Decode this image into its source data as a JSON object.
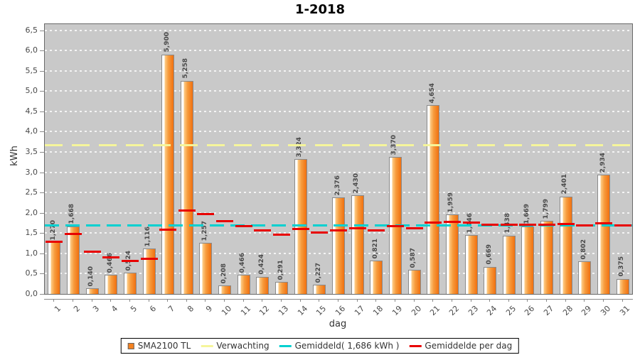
{
  "chart_data": {
    "type": "bar",
    "title": "1-2018",
    "xlabel": "dag",
    "ylabel": "kWh",
    "ylim": [
      0,
      6.65
    ],
    "y_tick_step": 0.5,
    "y_ticks": [
      "0,0",
      "0,5",
      "1,0",
      "1,5",
      "2,0",
      "2,5",
      "3,0",
      "3,5",
      "4,0",
      "4,5",
      "5,0",
      "5,5",
      "6,0",
      "6,5"
    ],
    "categories": [
      "1",
      "2",
      "3",
      "4",
      "5",
      "6",
      "7",
      "8",
      "9",
      "10",
      "11",
      "12",
      "13",
      "14",
      "15",
      "16",
      "17",
      "18",
      "19",
      "20",
      "21",
      "22",
      "23",
      "24",
      "25",
      "26",
      "27",
      "28",
      "29",
      "30",
      "31"
    ],
    "grid": true,
    "plot_bg": "#c9c9c9",
    "grid_color": "rgba(255,255,255,0.8)",
    "legend_position": "bottom",
    "series": [
      {
        "name": "SMA2100 TL",
        "type": "bar",
        "color": "#f58220",
        "gradient": [
          "#ffffff",
          "#fdcb85",
          "#f79b3c",
          "#f07010"
        ],
        "values": [
          1.27,
          1.668,
          0.14,
          0.466,
          0.524,
          1.116,
          5.9,
          5.258,
          1.257,
          0.208,
          0.466,
          0.424,
          0.291,
          3.324,
          0.227,
          2.376,
          2.43,
          0.821,
          3.37,
          0.587,
          4.654,
          1.959,
          1.446,
          0.669,
          1.438,
          1.669,
          1.799,
          2.401,
          0.802,
          2.934,
          0.375
        ],
        "labels": [
          "1,270",
          "1,668",
          "0,140",
          "0,466",
          "0,524",
          "1,116",
          "5,900",
          "5,258",
          "1,257",
          "0,208",
          "0,466",
          "0,424",
          "0,291",
          "3,324",
          "0,227",
          "2,376",
          "2,430",
          "0,821",
          "3,370",
          "0,587",
          "4,654",
          "1,959",
          "1,446",
          "0,669",
          "1,438",
          "1,669",
          "1,799",
          "2,401",
          "0,802",
          "2,934",
          "0,375"
        ]
      },
      {
        "name": "Verwachting",
        "type": "hline",
        "color": "#f5f59b",
        "value": 3.65
      },
      {
        "name": "Gemiddeld( 1,686 kWh )",
        "type": "hline",
        "color": "#00d0d0",
        "value": 1.686
      },
      {
        "name": "Gemiddelde per dag",
        "type": "segments",
        "color": "#e80000",
        "values": [
          1.27,
          1.469,
          1.026,
          0.886,
          0.814,
          0.864,
          1.583,
          2.043,
          1.955,
          1.781,
          1.661,
          1.558,
          1.461,
          1.594,
          1.503,
          1.557,
          1.609,
          1.565,
          1.66,
          1.606,
          1.751,
          1.761,
          1.747,
          1.702,
          1.691,
          1.691,
          1.695,
          1.72,
          1.688,
          1.73,
          1.686
        ]
      }
    ]
  }
}
